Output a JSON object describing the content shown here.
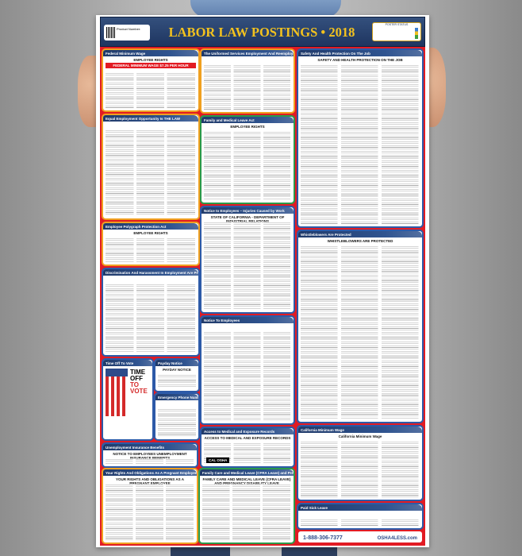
{
  "poster": {
    "title": "LABOR LAW POSTINGS • 2018",
    "product_label": "Product Number:",
    "status_label": "POSTER STATUS",
    "sections": [
      {
        "title": "Federal Minimum Wage",
        "subtitle": "EMPLOYEE RIGHTS",
        "highlight": "FEDERAL MINIMUM WAGE $7.25 PER HOUR",
        "style": "orange"
      },
      {
        "title": "The Uniformed Services Employment And Reemployment Rights Act",
        "subtitle": "",
        "style": "orange"
      },
      {
        "title": "Safety And Health Protection On The Job",
        "subtitle": "SAFETY AND HEALTH PROTECTION ON THE JOB",
        "style": "blue"
      },
      {
        "title": "Equal Employment Opportunity Is THE LAW",
        "subtitle": "",
        "style": "orange"
      },
      {
        "title": "Family and Medical Leave Act",
        "subtitle": "EMPLOYEE RIGHTS",
        "style": "green"
      },
      {
        "title": "Employee Polygraph Protection Act",
        "subtitle": "EMPLOYEE RIGHTS",
        "style": "orange"
      },
      {
        "title": "Notice to Employees – Injuries Caused by Work",
        "subtitle": "STATE OF CALIFORNIA - DEPARTMENT OF INDUSTRIAL RELATIONS",
        "style": "blue"
      },
      {
        "title": "Whistleblowers Are Protected",
        "subtitle": "WHISTLEBLOWERS ARE PROTECTED",
        "style": "blue"
      },
      {
        "title": "Discrimination And Harassment In Employment Are Prohibited By Law",
        "subtitle": "",
        "style": "blue"
      },
      {
        "title": "Notice To Employees",
        "subtitle": "",
        "style": "blue"
      },
      {
        "title": "Time Off To Vote",
        "subtitle": "",
        "style": "blue"
      },
      {
        "title": "Payday Notice",
        "subtitle": "PAYDAY NOTICE",
        "style": "blue"
      },
      {
        "title": "Emergency Phone Numbers",
        "subtitle": "",
        "style": "blue"
      },
      {
        "title": "Access to Medical and Exposure Records",
        "subtitle": "ACCESS TO MEDICAL AND EXPOSURE RECORDS",
        "style": "blue"
      },
      {
        "title": "California Minimum Wage",
        "subtitle": "California Minimum Wage",
        "style": "blue"
      },
      {
        "title": "Unemployment Insurance Benefits",
        "subtitle": "NOTICE TO EMPLOYEES UNEMPLOYMENT INSURANCE BENEFITS",
        "style": "blue"
      },
      {
        "title": "Your Rights And Obligations As A Pregnant Employee",
        "subtitle": "YOUR RIGHTS AND OBLIGATIONS AS A PREGNANT EMPLOYEE",
        "style": "orange"
      },
      {
        "title": "Family Care and Medical Leave (CFRA Leave) and Pregnancy Disability Leave",
        "subtitle": "FAMILY CARE AND MEDICAL LEAVE (CFRA LEAVE) AND PREGNANCY DISABILITY LEAVE",
        "style": "green"
      },
      {
        "title": "Paid Sick Leave",
        "subtitle": "",
        "style": "blue"
      }
    ],
    "vote": {
      "line1": "TIME OFF",
      "line2": "TO VOTE"
    },
    "cal_osha": "CAL OSHA",
    "footer": {
      "phone": "1-888-306-7377",
      "brand": "OSHA4LESS.com"
    }
  }
}
